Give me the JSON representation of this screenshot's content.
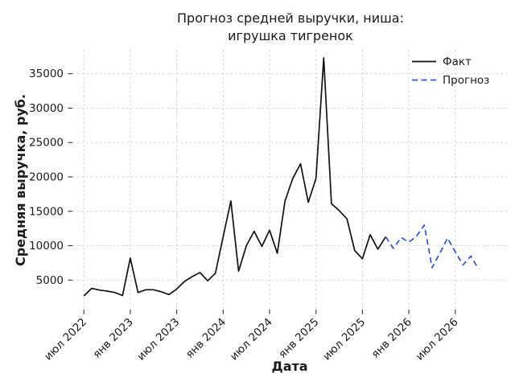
{
  "chart_data": {
    "type": "line",
    "title_line1": "Прогноз средней выручки, ниша:",
    "title_line2": "игрушка тигренок",
    "xlabel": "Дата",
    "ylabel": "Средняя выручка, руб.",
    "x_tick_labels": [
      "июл 2022",
      "янв 2023",
      "июл 2023",
      "янв 2024",
      "июл 2024",
      "янв 2025",
      "июл 2025",
      "янв 2026",
      "июл 2026"
    ],
    "x_tick_indices": [
      0,
      6,
      12,
      18,
      24,
      30,
      36,
      42,
      48
    ],
    "y_ticks": [
      5000,
      10000,
      15000,
      20000,
      25000,
      30000,
      35000
    ],
    "y_range": [
      700,
      38500
    ],
    "grid": true,
    "legend_position": "upper right",
    "colors": {
      "fact": "#111111",
      "forecast": "#2F56C8",
      "gridline": "#d0d0d0",
      "tick_mark": "#333333"
    },
    "series": [
      {
        "name": "Факт",
        "key": "fact",
        "color": "#111111",
        "dash": "solid",
        "start_index": 0,
        "start_month": "июл 2022",
        "values": [
          2700,
          3800,
          3550,
          3400,
          3200,
          2750,
          8200,
          3200,
          3600,
          3600,
          3300,
          2900,
          3700,
          4800,
          5500,
          6100,
          4900,
          6000,
          11300,
          16500,
          6300,
          10000,
          12100,
          9900,
          12250,
          8900,
          16500,
          19800,
          21900,
          16300,
          19800,
          37300,
          16100,
          15100,
          13900,
          9300,
          8100,
          11600,
          9500,
          11300
        ]
      },
      {
        "name": "Прогноз",
        "key": "forecast",
        "color": "#2F56C8",
        "dash": "dashed",
        "start_index": 39,
        "start_month": "окт 2025",
        "values": [
          11300,
          9600,
          11200,
          10500,
          11400,
          13000,
          6800,
          8900,
          11100,
          9100,
          7200,
          8500,
          6600
        ]
      }
    ]
  }
}
